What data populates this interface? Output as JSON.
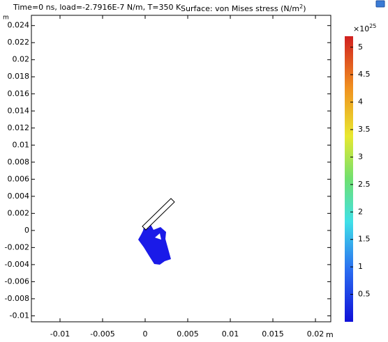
{
  "chart_data": {
    "type": "surface",
    "title": "Time=0 ns, load=-2.7916E-7 N/m, T=350 K",
    "subtitle_main": "Surface: von Mises stress (N/m",
    "subtitle_sup": "2",
    "subtitle_end": ")",
    "x_unit": "m",
    "y_unit": "m",
    "xlim": [
      -0.01336,
      0.0218
    ],
    "ylim": [
      -0.0107,
      0.0252
    ],
    "xticks": [
      -0.01,
      -0.005,
      0,
      0.005,
      0.01,
      0.015,
      0.02
    ],
    "yticks": [
      0.024,
      0.022,
      0.02,
      0.018,
      0.016,
      0.014,
      0.012,
      0.01,
      0.008,
      0.006,
      0.004,
      0.002,
      0,
      -0.002,
      -0.004,
      -0.006,
      -0.008,
      -0.01
    ],
    "colorbar": {
      "lim": [
        0,
        5.2
      ],
      "ticks": [
        0.5,
        1,
        1.5,
        2,
        2.5,
        3,
        3.5,
        4,
        4.5,
        5
      ],
      "multiplier": "×10",
      "exponent": "25"
    }
  }
}
